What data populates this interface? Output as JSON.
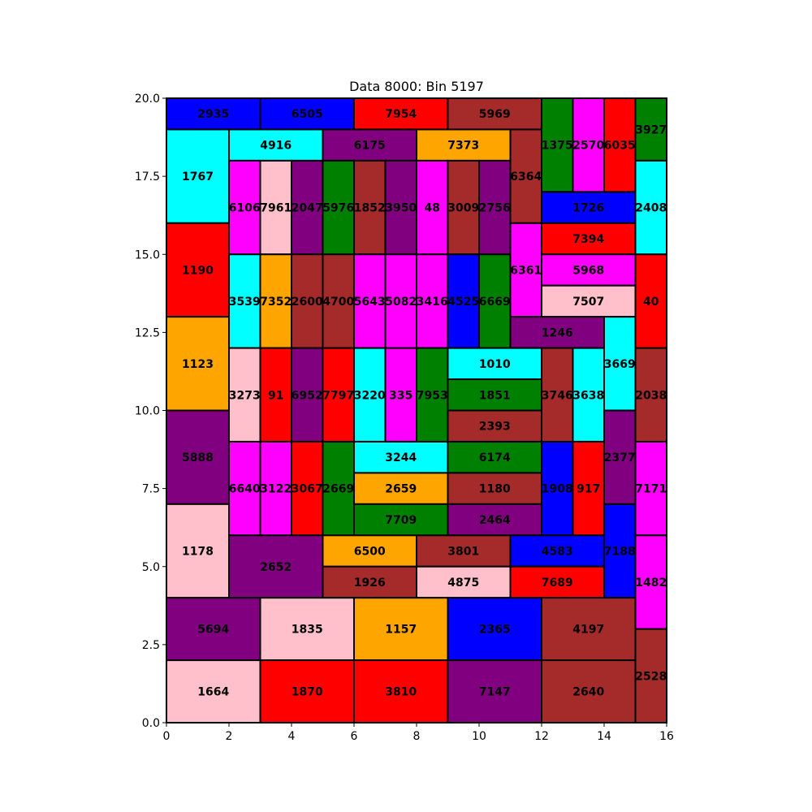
{
  "chart_data": {
    "type": "treemap",
    "title": "Data 8000: Bin 5197",
    "xlabel": "",
    "ylabel": "",
    "xlim": [
      0,
      16
    ],
    "ylim": [
      0,
      20
    ],
    "xticks": [
      "0",
      "2",
      "4",
      "6",
      "8",
      "10",
      "12",
      "14",
      "16"
    ],
    "yticks": [
      "0.0",
      "2.5",
      "5.0",
      "7.5",
      "10.0",
      "12.5",
      "15.0",
      "17.5",
      "20.0"
    ],
    "colors": {
      "blue": "#0000ff",
      "red": "#ff0000",
      "brown": "#a52a2a",
      "green": "#008000",
      "magenta": "#ff00ff",
      "cyan": "#00ffff",
      "purple": "#800080",
      "orange": "#ffa500",
      "pink": "#ffc0cb"
    },
    "rects": [
      {
        "label": "2935",
        "x": 0,
        "y": 19,
        "w": 3,
        "h": 1,
        "color": "blue"
      },
      {
        "label": "6505",
        "x": 3,
        "y": 19,
        "w": 3,
        "h": 1,
        "color": "blue"
      },
      {
        "label": "7954",
        "x": 6,
        "y": 19,
        "w": 3,
        "h": 1,
        "color": "red"
      },
      {
        "label": "5969",
        "x": 9,
        "y": 19,
        "w": 3,
        "h": 1,
        "color": "brown"
      },
      {
        "label": "1375",
        "x": 12,
        "y": 17,
        "w": 1,
        "h": 3,
        "color": "green"
      },
      {
        "label": "2570",
        "x": 13,
        "y": 17,
        "w": 1,
        "h": 3,
        "color": "magenta"
      },
      {
        "label": "6035",
        "x": 14,
        "y": 17,
        "w": 1,
        "h": 3,
        "color": "red"
      },
      {
        "label": "3927",
        "x": 15,
        "y": 18,
        "w": 1,
        "h": 2,
        "color": "green"
      },
      {
        "label": "1767",
        "x": 0,
        "y": 16,
        "w": 2,
        "h": 3,
        "color": "cyan"
      },
      {
        "label": "4916",
        "x": 2,
        "y": 18,
        "w": 3,
        "h": 1,
        "color": "cyan"
      },
      {
        "label": "6175",
        "x": 5,
        "y": 18,
        "w": 3,
        "h": 1,
        "color": "purple"
      },
      {
        "label": "7373",
        "x": 8,
        "y": 18,
        "w": 3,
        "h": 1,
        "color": "orange"
      },
      {
        "label": "6364",
        "x": 11,
        "y": 16,
        "w": 1,
        "h": 3,
        "color": "brown"
      },
      {
        "label": "6106",
        "x": 2,
        "y": 15,
        "w": 1,
        "h": 3,
        "color": "magenta"
      },
      {
        "label": "7961",
        "x": 3,
        "y": 15,
        "w": 1,
        "h": 3,
        "color": "pink"
      },
      {
        "label": "2047",
        "x": 4,
        "y": 15,
        "w": 1,
        "h": 3,
        "color": "purple"
      },
      {
        "label": "5976",
        "x": 5,
        "y": 15,
        "w": 1,
        "h": 3,
        "color": "green"
      },
      {
        "label": "1852",
        "x": 6,
        "y": 15,
        "w": 1,
        "h": 3,
        "color": "brown"
      },
      {
        "label": "3950",
        "x": 7,
        "y": 15,
        "w": 1,
        "h": 3,
        "color": "purple"
      },
      {
        "label": "48",
        "x": 8,
        "y": 15,
        "w": 1,
        "h": 3,
        "color": "magenta"
      },
      {
        "label": "3009",
        "x": 9,
        "y": 15,
        "w": 1,
        "h": 3,
        "color": "brown"
      },
      {
        "label": "2756",
        "x": 10,
        "y": 15,
        "w": 1,
        "h": 3,
        "color": "purple"
      },
      {
        "label": "1726",
        "x": 12,
        "y": 16,
        "w": 3,
        "h": 1,
        "color": "blue"
      },
      {
        "label": "2408",
        "x": 15,
        "y": 15,
        "w": 1,
        "h": 3,
        "color": "cyan"
      },
      {
        "label": "1190",
        "x": 0,
        "y": 13,
        "w": 2,
        "h": 3,
        "color": "red"
      },
      {
        "label": "7394",
        "x": 12,
        "y": 15,
        "w": 3,
        "h": 1,
        "color": "red"
      },
      {
        "label": "6361",
        "x": 11,
        "y": 13,
        "w": 1,
        "h": 3,
        "color": "magenta"
      },
      {
        "label": "5968",
        "x": 12,
        "y": 14,
        "w": 3,
        "h": 1,
        "color": "magenta"
      },
      {
        "label": "3539",
        "x": 2,
        "y": 12,
        "w": 1,
        "h": 3,
        "color": "cyan"
      },
      {
        "label": "7352",
        "x": 3,
        "y": 12,
        "w": 1,
        "h": 3,
        "color": "orange"
      },
      {
        "label": "2600",
        "x": 4,
        "y": 12,
        "w": 1,
        "h": 3,
        "color": "brown"
      },
      {
        "label": "4700",
        "x": 5,
        "y": 12,
        "w": 1,
        "h": 3,
        "color": "brown"
      },
      {
        "label": "5643",
        "x": 6,
        "y": 12,
        "w": 1,
        "h": 3,
        "color": "magenta"
      },
      {
        "label": "5082",
        "x": 7,
        "y": 12,
        "w": 1,
        "h": 3,
        "color": "magenta"
      },
      {
        "label": "3416",
        "x": 8,
        "y": 12,
        "w": 1,
        "h": 3,
        "color": "magenta"
      },
      {
        "label": "4525",
        "x": 9,
        "y": 12,
        "w": 1,
        "h": 3,
        "color": "blue"
      },
      {
        "label": "6669",
        "x": 10,
        "y": 12,
        "w": 1,
        "h": 3,
        "color": "green"
      },
      {
        "label": "7507",
        "x": 12,
        "y": 13,
        "w": 3,
        "h": 1,
        "color": "pink"
      },
      {
        "label": "40",
        "x": 15,
        "y": 12,
        "w": 1,
        "h": 3,
        "color": "red"
      },
      {
        "label": "1246",
        "x": 11,
        "y": 12,
        "w": 3,
        "h": 1,
        "color": "purple"
      },
      {
        "label": "1123",
        "x": 0,
        "y": 10,
        "w": 2,
        "h": 3,
        "color": "orange"
      },
      {
        "label": "3669",
        "x": 14,
        "y": 10,
        "w": 1,
        "h": 3,
        "color": "cyan"
      },
      {
        "label": "1010",
        "x": 9,
        "y": 11,
        "w": 3,
        "h": 1,
        "color": "cyan"
      },
      {
        "label": "3273",
        "x": 2,
        "y": 9,
        "w": 1,
        "h": 3,
        "color": "pink"
      },
      {
        "label": "91",
        "x": 3,
        "y": 9,
        "w": 1,
        "h": 3,
        "color": "red"
      },
      {
        "label": "6952",
        "x": 4,
        "y": 9,
        "w": 1,
        "h": 3,
        "color": "purple"
      },
      {
        "label": "7797",
        "x": 5,
        "y": 9,
        "w": 1,
        "h": 3,
        "color": "red"
      },
      {
        "label": "3220",
        "x": 6,
        "y": 9,
        "w": 1,
        "h": 3,
        "color": "cyan"
      },
      {
        "label": "335",
        "x": 7,
        "y": 9,
        "w": 1,
        "h": 3,
        "color": "magenta"
      },
      {
        "label": "7953",
        "x": 8,
        "y": 9,
        "w": 1,
        "h": 3,
        "color": "green"
      },
      {
        "label": "1851",
        "x": 9,
        "y": 10,
        "w": 3,
        "h": 1,
        "color": "green"
      },
      {
        "label": "3746",
        "x": 12,
        "y": 9,
        "w": 1,
        "h": 3,
        "color": "brown"
      },
      {
        "label": "3638",
        "x": 13,
        "y": 9,
        "w": 1,
        "h": 3,
        "color": "cyan"
      },
      {
        "label": "2038",
        "x": 15,
        "y": 9,
        "w": 1,
        "h": 3,
        "color": "brown"
      },
      {
        "label": "2393",
        "x": 9,
        "y": 9,
        "w": 3,
        "h": 1,
        "color": "brown"
      },
      {
        "label": "5888",
        "x": 0,
        "y": 7,
        "w": 2,
        "h": 3,
        "color": "purple"
      },
      {
        "label": "2377",
        "x": 14,
        "y": 7,
        "w": 1,
        "h": 3,
        "color": "purple"
      },
      {
        "label": "3244",
        "x": 6,
        "y": 8,
        "w": 3,
        "h": 1,
        "color": "cyan"
      },
      {
        "label": "6174",
        "x": 9,
        "y": 8,
        "w": 3,
        "h": 1,
        "color": "green"
      },
      {
        "label": "6640",
        "x": 2,
        "y": 6,
        "w": 1,
        "h": 3,
        "color": "magenta"
      },
      {
        "label": "3122",
        "x": 3,
        "y": 6,
        "w": 1,
        "h": 3,
        "color": "magenta"
      },
      {
        "label": "3067",
        "x": 4,
        "y": 6,
        "w": 1,
        "h": 3,
        "color": "red"
      },
      {
        "label": "2669",
        "x": 5,
        "y": 6,
        "w": 1,
        "h": 3,
        "color": "green"
      },
      {
        "label": "2659",
        "x": 6,
        "y": 7,
        "w": 3,
        "h": 1,
        "color": "orange"
      },
      {
        "label": "1180",
        "x": 9,
        "y": 7,
        "w": 3,
        "h": 1,
        "color": "brown"
      },
      {
        "label": "1908",
        "x": 12,
        "y": 6,
        "w": 1,
        "h": 3,
        "color": "blue"
      },
      {
        "label": "917",
        "x": 13,
        "y": 6,
        "w": 1,
        "h": 3,
        "color": "red"
      },
      {
        "label": "7171",
        "x": 15,
        "y": 6,
        "w": 1,
        "h": 3,
        "color": "magenta"
      },
      {
        "label": "7709",
        "x": 6,
        "y": 6,
        "w": 3,
        "h": 1,
        "color": "green"
      },
      {
        "label": "2464",
        "x": 9,
        "y": 6,
        "w": 3,
        "h": 1,
        "color": "purple"
      },
      {
        "label": "1178",
        "x": 0,
        "y": 4,
        "w": 2,
        "h": 3,
        "color": "pink"
      },
      {
        "label": "7188",
        "x": 14,
        "y": 4,
        "w": 1,
        "h": 3,
        "color": "blue"
      },
      {
        "label": "2652",
        "x": 2,
        "y": 4,
        "w": 3,
        "h": 2,
        "color": "purple"
      },
      {
        "label": "6500",
        "x": 5,
        "y": 5,
        "w": 3,
        "h": 1,
        "color": "orange"
      },
      {
        "label": "3801",
        "x": 8,
        "y": 5,
        "w": 3,
        "h": 1,
        "color": "brown"
      },
      {
        "label": "4583",
        "x": 11,
        "y": 5,
        "w": 3,
        "h": 1,
        "color": "blue"
      },
      {
        "label": "1926",
        "x": 5,
        "y": 4,
        "w": 3,
        "h": 1,
        "color": "brown"
      },
      {
        "label": "4875",
        "x": 8,
        "y": 4,
        "w": 3,
        "h": 1,
        "color": "pink"
      },
      {
        "label": "7689",
        "x": 11,
        "y": 4,
        "w": 3,
        "h": 1,
        "color": "red"
      },
      {
        "label": "1482",
        "x": 15,
        "y": 3,
        "w": 1,
        "h": 3,
        "color": "magenta"
      },
      {
        "label": "5694",
        "x": 0,
        "y": 2,
        "w": 3,
        "h": 2,
        "color": "purple"
      },
      {
        "label": "1835",
        "x": 3,
        "y": 2,
        "w": 3,
        "h": 2,
        "color": "pink"
      },
      {
        "label": "1157",
        "x": 6,
        "y": 2,
        "w": 3,
        "h": 2,
        "color": "orange"
      },
      {
        "label": "2365",
        "x": 9,
        "y": 2,
        "w": 3,
        "h": 2,
        "color": "blue"
      },
      {
        "label": "4197",
        "x": 12,
        "y": 2,
        "w": 3,
        "h": 2,
        "color": "brown"
      },
      {
        "label": "2528",
        "x": 15,
        "y": 0,
        "w": 1,
        "h": 3,
        "color": "brown"
      },
      {
        "label": "1664",
        "x": 0,
        "y": 0,
        "w": 3,
        "h": 2,
        "color": "pink"
      },
      {
        "label": "1870",
        "x": 3,
        "y": 0,
        "w": 3,
        "h": 2,
        "color": "red"
      },
      {
        "label": "3810",
        "x": 6,
        "y": 0,
        "w": 3,
        "h": 2,
        "color": "red"
      },
      {
        "label": "7147",
        "x": 9,
        "y": 0,
        "w": 3,
        "h": 2,
        "color": "purple"
      },
      {
        "label": "2640",
        "x": 12,
        "y": 0,
        "w": 3,
        "h": 2,
        "color": "brown"
      }
    ]
  }
}
